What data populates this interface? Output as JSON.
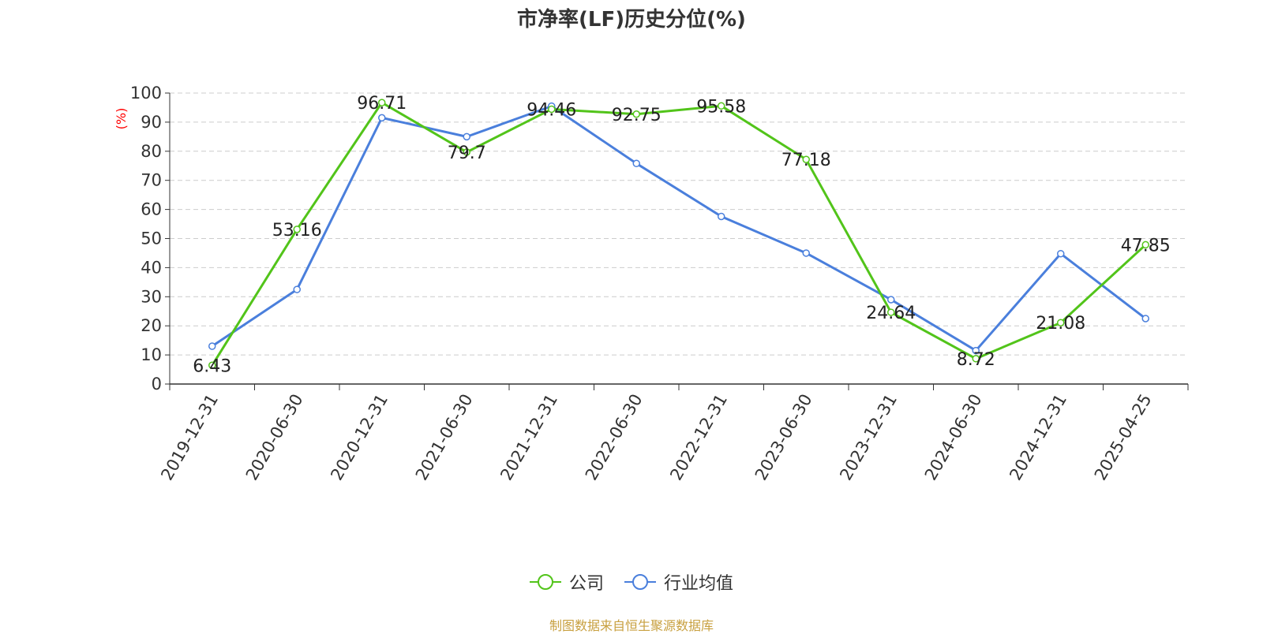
{
  "title": "市净率(LF)历史分位(%)",
  "source": "制图数据来自恒生聚源数据库",
  "colors": {
    "company": "#52c41a",
    "industry": "#4a7fdc",
    "grid": "#cccccc",
    "axis": "#333333",
    "ylabel": "#ff0000"
  },
  "chart_data": {
    "type": "line",
    "title": "市净率(LF)历史分位(%)",
    "xlabel": "",
    "ylabel": "(%)",
    "ylim": [
      0,
      100
    ],
    "yticks": [
      0,
      10,
      20,
      30,
      40,
      50,
      60,
      70,
      80,
      90,
      100
    ],
    "grid": true,
    "legend_position": "bottom",
    "categories": [
      "2019-12-31",
      "2020-06-30",
      "2020-12-31",
      "2021-06-30",
      "2021-12-31",
      "2022-06-30",
      "2022-12-31",
      "2023-06-30",
      "2023-12-31",
      "2024-06-30",
      "2024-12-31",
      "2025-04-25"
    ],
    "series": [
      {
        "name": "公司",
        "values": [
          6.43,
          53.16,
          96.71,
          79.7,
          94.46,
          92.75,
          95.58,
          77.18,
          24.64,
          8.72,
          21.08,
          47.85
        ],
        "labeled": true
      },
      {
        "name": "行业均值",
        "values": [
          13.0,
          32.5,
          91.5,
          85.0,
          95.5,
          75.8,
          57.6,
          45.0,
          29.0,
          11.5,
          44.8,
          22.5
        ],
        "labeled": false
      }
    ]
  }
}
